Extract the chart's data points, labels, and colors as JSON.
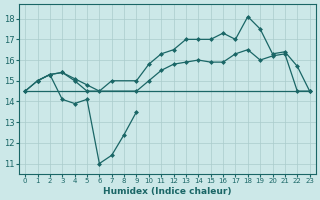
{
  "xlabel": "Humidex (Indice chaleur)",
  "bg_color": "#cce8e8",
  "grid_color": "#aacccc",
  "line_color": "#1a6666",
  "xlim": [
    -0.5,
    23.5
  ],
  "ylim": [
    10.5,
    18.7
  ],
  "yticks": [
    11,
    12,
    13,
    14,
    15,
    16,
    17,
    18
  ],
  "xticks": [
    0,
    1,
    2,
    3,
    4,
    5,
    6,
    7,
    8,
    9,
    10,
    11,
    12,
    13,
    14,
    15,
    16,
    17,
    18,
    19,
    20,
    21,
    22,
    23
  ],
  "line_top_x": [
    0,
    1,
    2,
    3,
    4,
    5,
    6,
    7,
    9,
    10,
    11,
    12,
    13,
    14,
    15,
    16,
    17,
    18,
    19,
    20,
    21,
    22,
    23
  ],
  "line_top_y": [
    14.5,
    15.0,
    15.3,
    15.4,
    15.1,
    14.8,
    14.5,
    15.0,
    15.0,
    15.8,
    16.3,
    16.5,
    17.0,
    17.0,
    17.0,
    17.3,
    17.0,
    18.1,
    17.5,
    16.3,
    16.4,
    15.7,
    14.5
  ],
  "line_mid_x": [
    0,
    1,
    2,
    3,
    4,
    5,
    9,
    10,
    11,
    12,
    13,
    14,
    15,
    16,
    17,
    18,
    19,
    20,
    21,
    22,
    23
  ],
  "line_mid_y": [
    14.5,
    15.0,
    15.3,
    15.4,
    15.0,
    14.5,
    14.5,
    15.0,
    15.5,
    15.8,
    15.9,
    16.0,
    15.9,
    15.9,
    16.3,
    16.5,
    16.0,
    16.2,
    16.3,
    14.5,
    14.5
  ],
  "line_flat_x": [
    0,
    5,
    9,
    22,
    23
  ],
  "line_flat_y": [
    14.5,
    14.5,
    14.5,
    14.5,
    14.5
  ],
  "line_dip_x": [
    1,
    2,
    3,
    4,
    5,
    6,
    7,
    8,
    9
  ],
  "line_dip_y": [
    15.0,
    15.3,
    14.1,
    13.9,
    14.1,
    11.0,
    11.4,
    12.4,
    13.5
  ]
}
